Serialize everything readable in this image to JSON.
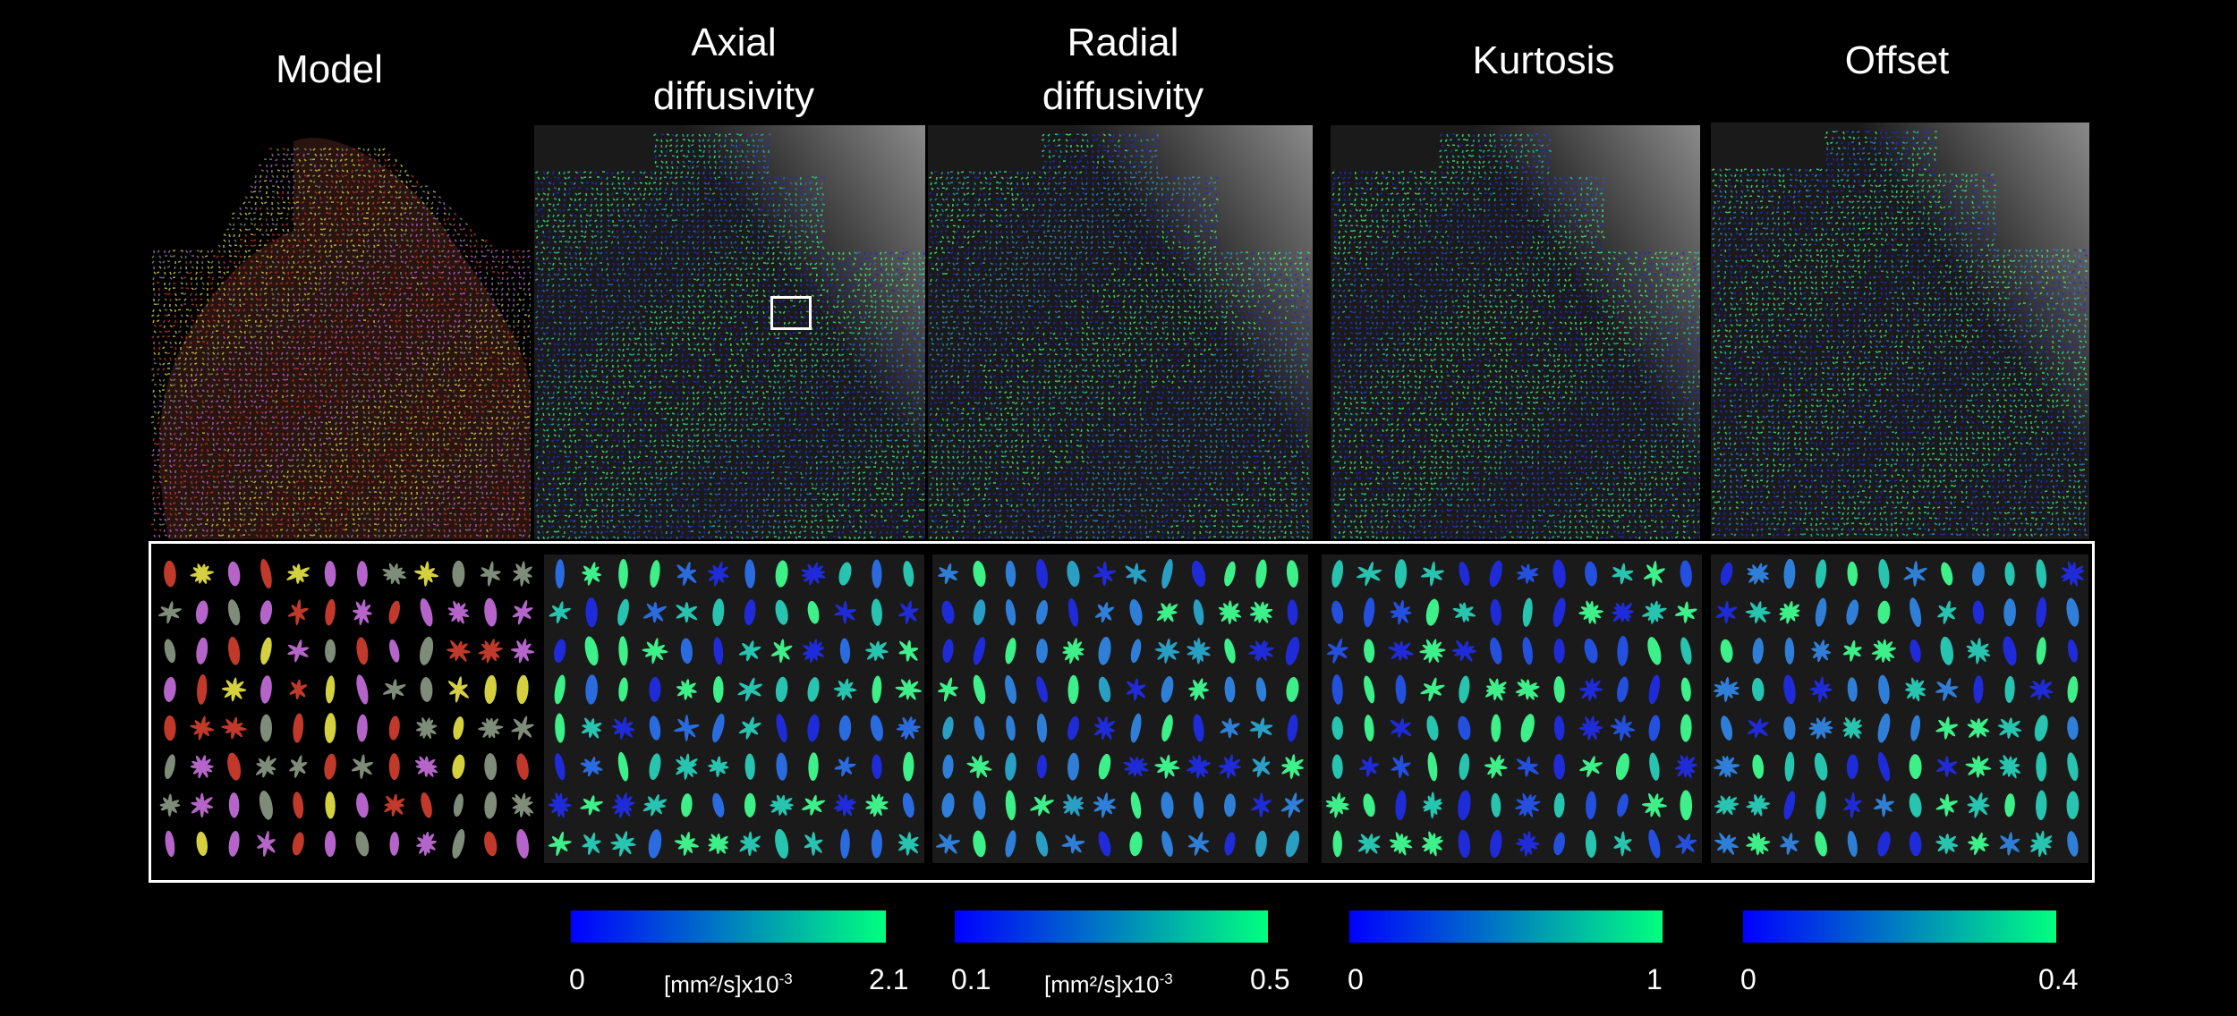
{
  "titles": {
    "model": "Model",
    "axial": "Axial\ndiffusivity",
    "radial": "Radial\ndiffusivity",
    "kurtosis": "Kurtosis",
    "offset": "Offset"
  },
  "panels": [
    {
      "id": "model",
      "palette": [
        "#c0392b",
        "#d4d040",
        "#7f8c7a",
        "#b565c9"
      ]
    },
    {
      "id": "axial",
      "palette": [
        "#1f2bd8",
        "#2b6be0",
        "#27c4b0",
        "#3ef08a"
      ]
    },
    {
      "id": "radial",
      "palette": [
        "#2a9fc4",
        "#2f7fd8",
        "#1f2bd8",
        "#3ef08a"
      ]
    },
    {
      "id": "kurtosis",
      "palette": [
        "#1f2bd8",
        "#2450e0",
        "#27c4b0",
        "#3ef08a"
      ]
    },
    {
      "id": "offset",
      "palette": [
        "#3ef08a",
        "#27c4b0",
        "#1f2bd8",
        "#2f7fd8"
      ]
    }
  ],
  "colorbars": [
    {
      "id": "axial",
      "min": "0",
      "max": "2.1",
      "unit": "[mm²/s]x10",
      "exp": "-3",
      "from": "#0000ff",
      "to": "#00ff80"
    },
    {
      "id": "radial",
      "min": "0.1",
      "max": "0.5",
      "unit": "[mm²/s]x10",
      "exp": "-3",
      "from": "#0000ff",
      "to": "#00ff80"
    },
    {
      "id": "kurtosis",
      "min": "0",
      "max": "1",
      "unit": "",
      "exp": "",
      "from": "#0000ff",
      "to": "#00ff80"
    },
    {
      "id": "offset",
      "min": "0",
      "max": "0.4",
      "unit": "",
      "exp": "",
      "from": "#0000ff",
      "to": "#00ff80"
    }
  ]
}
